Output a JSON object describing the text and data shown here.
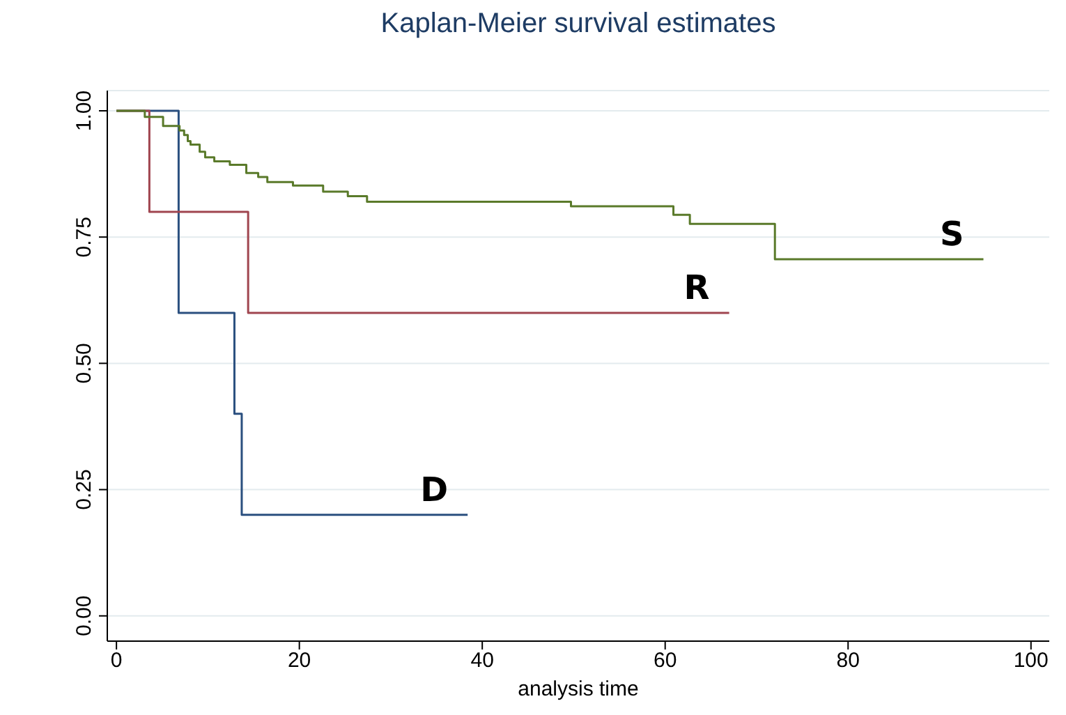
{
  "chart_data": {
    "type": "step",
    "title": "Kaplan-Meier survival estimates",
    "xlabel": "analysis time",
    "xlim": [
      -1,
      102
    ],
    "xticks": [
      0,
      20,
      40,
      60,
      80,
      100
    ],
    "ylim": [
      -0.05,
      1.04
    ],
    "yticks": [
      {
        "value": 0,
        "label": "0.00"
      },
      {
        "value": 0.25,
        "label": "0.25"
      },
      {
        "value": 0.5,
        "label": "0.50"
      },
      {
        "value": 0.75,
        "label": "0.75"
      },
      {
        "value": 1,
        "label": "1.00"
      }
    ],
    "grid": "y",
    "series": [
      {
        "name": "D",
        "color": "#2a4f7f",
        "x": [
          0,
          6.8,
          12.9,
          13.7,
          38.4
        ],
        "values": [
          1,
          0.6,
          0.4,
          0.2,
          0.2
        ]
      },
      {
        "name": "R",
        "color": "#a0454f",
        "x": [
          0,
          3.6,
          14.4,
          67
        ],
        "values": [
          1,
          0.8,
          0.6,
          0.6
        ]
      },
      {
        "name": "S",
        "color": "#5a7a2a",
        "x": [
          0,
          3.1,
          5.1,
          6.9,
          7.4,
          7.8,
          8.1,
          9.1,
          9.7,
          10.7,
          12.4,
          14.2,
          15.5,
          16.5,
          19.3,
          22.6,
          25.3,
          27.4,
          49.7,
          60.9,
          62.7,
          72.0,
          94.8
        ],
        "values": [
          1,
          0.988,
          0.97,
          0.961,
          0.952,
          0.94,
          0.933,
          0.919,
          0.908,
          0.9,
          0.893,
          0.877,
          0.869,
          0.859,
          0.852,
          0.84,
          0.831,
          0.82,
          0.811,
          0.794,
          0.776,
          0.706,
          0.706
        ]
      }
    ]
  }
}
